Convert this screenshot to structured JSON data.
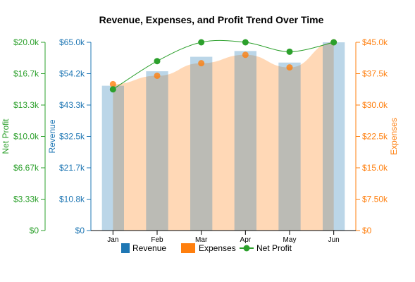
{
  "chart_data": {
    "type": "bar",
    "title": "Revenue, Expenses, and Profit Trend Over Time",
    "categories": [
      "Jan",
      "Feb",
      "Mar",
      "Apr",
      "May",
      "Jun"
    ],
    "series": [
      {
        "name": "Revenue",
        "type": "bar",
        "axis": "revenue",
        "color": "#1f77b4",
        "values": [
          50000,
          55000,
          60000,
          62000,
          58000,
          65000
        ]
      },
      {
        "name": "Expenses",
        "type": "area+scatter",
        "axis": "expenses",
        "color": "#ff7f0e",
        "values": [
          35000,
          37000,
          40000,
          42000,
          39000,
          45000
        ]
      },
      {
        "name": "Net Profit",
        "type": "line+scatter",
        "axis": "profit",
        "color": "#2ca02c",
        "values": [
          15000,
          18000,
          20000,
          20000,
          19000,
          20000
        ]
      }
    ],
    "axes": {
      "profit": {
        "label": "Net Profit",
        "range": [
          0,
          20000
        ],
        "ticks": [
          0,
          3333.33,
          6666.67,
          10000,
          13333.33,
          16666.67,
          20000
        ],
        "tick_labels": [
          "$0",
          "$3.33k",
          "$6.67k",
          "$10.0k",
          "$13.3k",
          "$16.7k",
          "$20.0k"
        ],
        "color": "#2ca02c",
        "side": "left-outer"
      },
      "revenue": {
        "label": "Revenue",
        "range": [
          0,
          65000
        ],
        "ticks": [
          0,
          10833.33,
          21666.67,
          32500,
          43333.33,
          54166.67,
          65000
        ],
        "tick_labels": [
          "$0",
          "$10.8k",
          "$21.7k",
          "$32.5k",
          "$43.3k",
          "$54.2k",
          "$65.0k"
        ],
        "color": "#1f77b4",
        "side": "left"
      },
      "expenses": {
        "label": "Expenses",
        "range": [
          0,
          45000
        ],
        "ticks": [
          0,
          7500,
          15000,
          22500,
          30000,
          37500,
          45000
        ],
        "tick_labels": [
          "$0",
          "$7.50k",
          "$15.0k",
          "$22.5k",
          "$30.0k",
          "$37.5k",
          "$45.0k"
        ],
        "color": "#ff7f0e",
        "side": "right"
      }
    },
    "grid": false,
    "legend": {
      "position": "bottom",
      "entries": [
        "Revenue",
        "Expenses",
        "Net Profit"
      ]
    }
  }
}
